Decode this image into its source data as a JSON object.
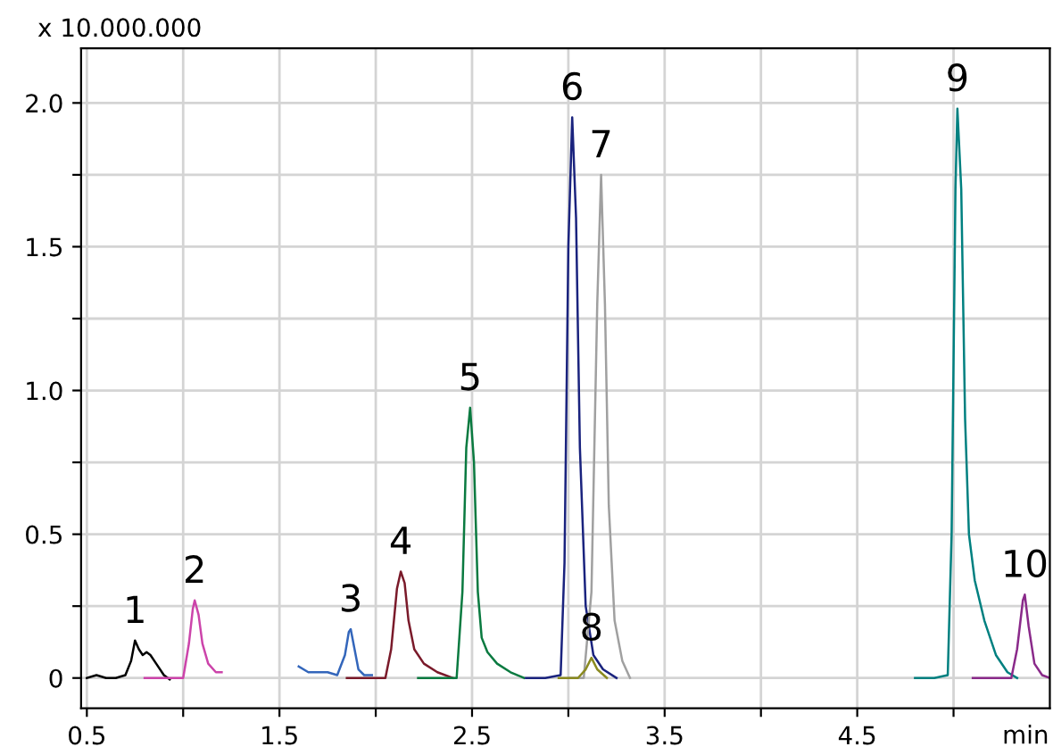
{
  "chart_data": {
    "type": "line",
    "ylabel": "x 10.000.000",
    "xlabel": "min",
    "xlim": [
      0.47,
      5.5
    ],
    "ylim": [
      -0.105,
      2.19
    ],
    "xticks": [
      0.5,
      {
        "value": 1.0,
        "label": null
      },
      1.5,
      {
        "value": 2.0,
        "label": null
      },
      2.5,
      {
        "value": 3.0,
        "label": null
      },
      3.5,
      {
        "value": 4.0,
        "label": null
      },
      4.5,
      {
        "value": 5.0,
        "label": null
      }
    ],
    "yticks": [
      0,
      {
        "value": 0.25,
        "label": null
      },
      0.5,
      {
        "value": 0.75,
        "label": null
      },
      {
        "value": 1.0,
        "label": "1.0"
      },
      {
        "value": 1.25,
        "label": null
      },
      1.5,
      {
        "value": 1.75,
        "label": null
      },
      {
        "value": 2.0,
        "label": "2.0"
      }
    ],
    "grid": true,
    "legend": false,
    "series": [
      {
        "color": "#000000",
        "x": [
          0.5,
          0.55,
          0.6,
          0.65,
          0.7,
          0.73,
          0.75,
          0.77,
          0.79,
          0.81,
          0.83,
          0.86,
          0.9,
          0.93
        ],
        "values": [
          0.0,
          0.01,
          0.0,
          0.0,
          0.01,
          0.06,
          0.13,
          0.1,
          0.08,
          0.09,
          0.08,
          0.05,
          0.01,
          -0.005
        ]
      },
      {
        "color": "#cc44aa",
        "x": [
          0.8,
          0.9,
          1.0,
          1.03,
          1.05,
          1.06,
          1.08,
          1.1,
          1.13,
          1.17,
          1.2
        ],
        "values": [
          0.0,
          0.0,
          0.0,
          0.12,
          0.24,
          0.27,
          0.22,
          0.12,
          0.05,
          0.02,
          0.02
        ]
      },
      {
        "color": "#3366bb",
        "x": [
          1.6,
          1.65,
          1.7,
          1.75,
          1.8,
          1.84,
          1.86,
          1.87,
          1.89,
          1.91,
          1.94,
          1.98
        ],
        "values": [
          0.04,
          0.02,
          0.02,
          0.02,
          0.01,
          0.08,
          0.16,
          0.17,
          0.1,
          0.03,
          0.01,
          0.01
        ]
      },
      {
        "color": "#7a1a2a",
        "x": [
          1.85,
          1.95,
          2.05,
          2.08,
          2.11,
          2.13,
          2.15,
          2.17,
          2.2,
          2.25,
          2.32,
          2.4
        ],
        "values": [
          0.0,
          0.0,
          0.0,
          0.1,
          0.31,
          0.37,
          0.33,
          0.2,
          0.1,
          0.05,
          0.02,
          0.0
        ]
      },
      {
        "color": "#0a7a40",
        "x": [
          2.22,
          2.32,
          2.42,
          2.45,
          2.47,
          2.49,
          2.51,
          2.53,
          2.55,
          2.58,
          2.63,
          2.7,
          2.77
        ],
        "values": [
          0.0,
          0.0,
          0.0,
          0.3,
          0.8,
          0.94,
          0.75,
          0.3,
          0.14,
          0.09,
          0.05,
          0.02,
          0.0
        ]
      },
      {
        "color": "#1a237e",
        "x": [
          2.78,
          2.88,
          2.96,
          2.98,
          3.0,
          3.02,
          3.04,
          3.06,
          3.09,
          3.13,
          3.18,
          3.25
        ],
        "values": [
          0.0,
          0.0,
          0.01,
          0.4,
          1.5,
          1.95,
          1.6,
          0.8,
          0.25,
          0.08,
          0.03,
          0.0
        ]
      },
      {
        "color": "#a0a0a0",
        "x": [
          3.0,
          3.08,
          3.12,
          3.15,
          3.17,
          3.19,
          3.21,
          3.24,
          3.28,
          3.32
        ],
        "values": [
          0.0,
          0.0,
          0.3,
          1.3,
          1.75,
          1.3,
          0.6,
          0.2,
          0.06,
          0.0
        ]
      },
      {
        "color": "#8a8a20",
        "x": [
          2.95,
          3.05,
          3.09,
          3.12,
          3.15,
          3.2
        ],
        "values": [
          0.0,
          0.0,
          0.03,
          0.07,
          0.03,
          0.0
        ]
      },
      {
        "color": "#008080",
        "x": [
          4.8,
          4.9,
          4.97,
          4.99,
          5.01,
          5.02,
          5.04,
          5.06,
          5.08,
          5.11,
          5.16,
          5.22,
          5.28,
          5.33
        ],
        "values": [
          0.0,
          0.0,
          0.01,
          0.5,
          1.7,
          1.98,
          1.7,
          0.9,
          0.5,
          0.34,
          0.2,
          0.08,
          0.02,
          0.0
        ]
      },
      {
        "color": "#8a2a8a",
        "x": [
          5.1,
          5.2,
          5.3,
          5.33,
          5.36,
          5.37,
          5.39,
          5.42,
          5.46,
          5.5
        ],
        "values": [
          0.0,
          0.0,
          0.0,
          0.1,
          0.27,
          0.29,
          0.18,
          0.05,
          0.01,
          0.0
        ]
      }
    ],
    "annotations": [
      {
        "text": "1",
        "x": 0.75,
        "y": 0.13
      },
      {
        "text": "2",
        "x": 1.06,
        "y": 0.27
      },
      {
        "text": "3",
        "x": 1.87,
        "y": 0.17
      },
      {
        "text": "4",
        "x": 2.13,
        "y": 0.37
      },
      {
        "text": "5",
        "x": 2.49,
        "y": 0.94
      },
      {
        "text": "6",
        "x": 3.02,
        "y": 1.95
      },
      {
        "text": "7",
        "x": 3.17,
        "y": 1.75
      },
      {
        "text": "8",
        "x": 3.12,
        "y": 0.07
      },
      {
        "text": "9",
        "x": 5.02,
        "y": 1.98
      },
      {
        "text": "10",
        "x": 5.37,
        "y": 0.29
      }
    ]
  }
}
